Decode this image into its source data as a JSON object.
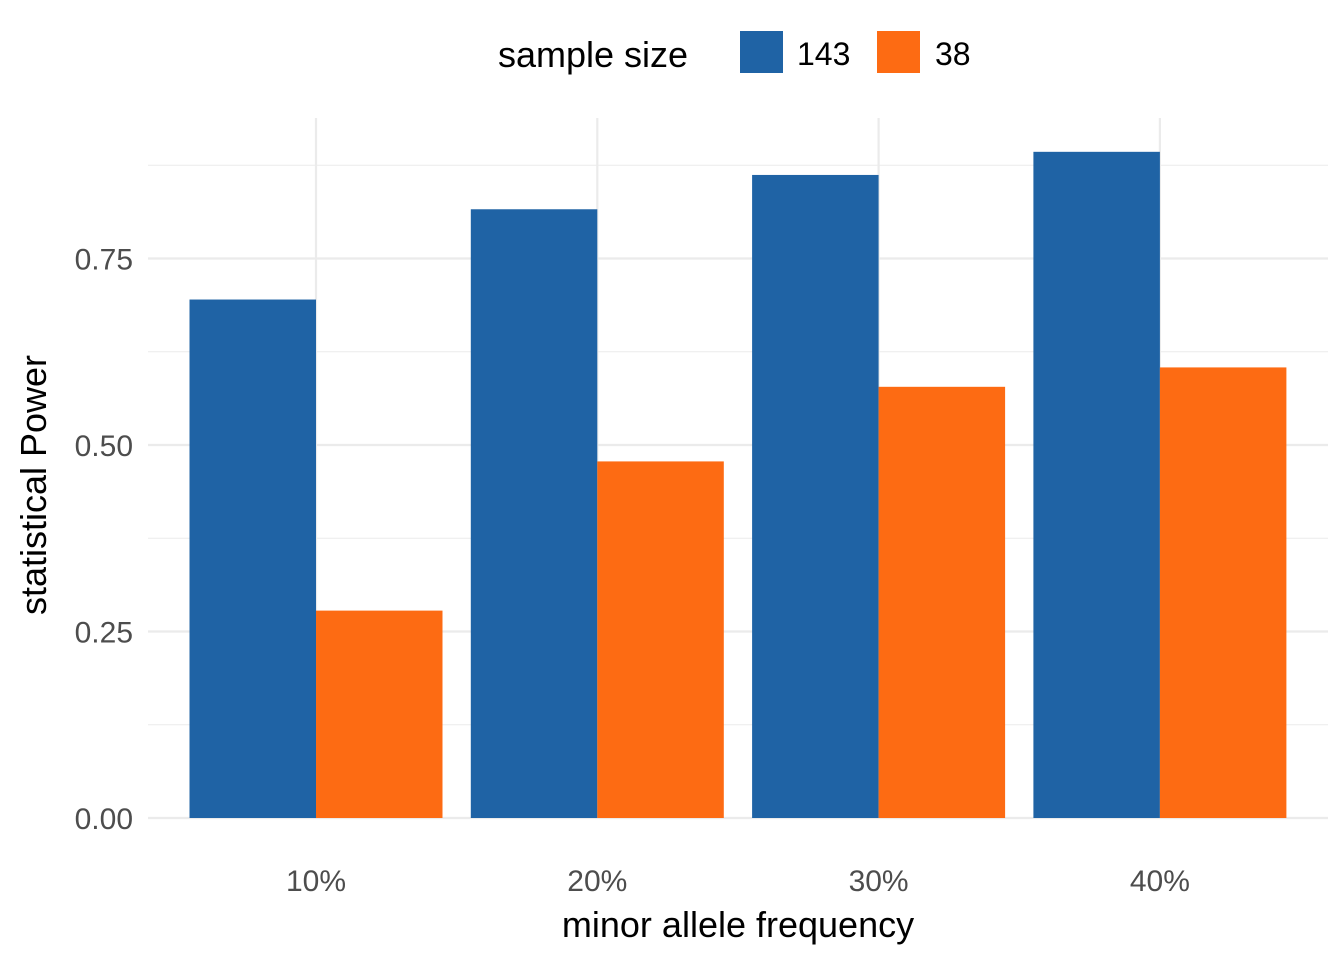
{
  "chart_data": {
    "type": "bar",
    "title": "",
    "xlabel": "minor allele frequency",
    "ylabel": "statistical Power",
    "categories": [
      "10%",
      "20%",
      "30%",
      "40%"
    ],
    "legend": {
      "title": "sample size",
      "position": "top"
    },
    "series": [
      {
        "name": "143",
        "color": "#1f63a5",
        "values": [
          0.695,
          0.816,
          0.862,
          0.893
        ]
      },
      {
        "name": "38",
        "color": "#fd6b13",
        "values": [
          0.278,
          0.478,
          0.578,
          0.604
        ]
      }
    ],
    "yticks": [
      "0.00",
      "0.25",
      "0.50",
      "0.75"
    ],
    "ylim": [
      0,
      0.9
    ],
    "grid": true
  }
}
